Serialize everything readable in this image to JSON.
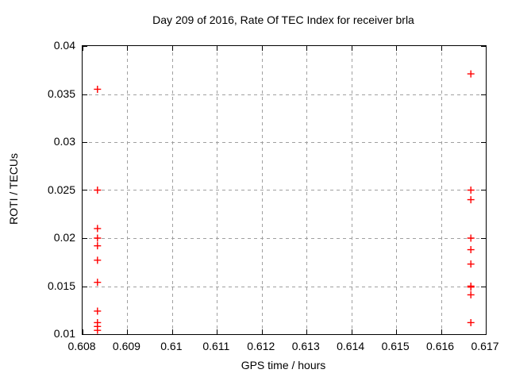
{
  "chart_data": {
    "type": "scatter",
    "title": "Day 209 of 2016, Rate Of TEC Index for receiver brla",
    "xlabel": "GPS time / hours",
    "ylabel": "ROTI / TECUs",
    "xlim": [
      0.608,
      0.617
    ],
    "ylim": [
      0.01,
      0.04
    ],
    "grid": true,
    "legend": "none",
    "axis_color": "#000000",
    "grid_color": "#a0a0a0",
    "text_color": "#000000",
    "background_color": "#ffffff",
    "x_ticks": [
      {
        "v": 0.608,
        "label": "0.608"
      },
      {
        "v": 0.609,
        "label": "0.609"
      },
      {
        "v": 0.61,
        "label": "0.61"
      },
      {
        "v": 0.611,
        "label": "0.611"
      },
      {
        "v": 0.612,
        "label": "0.612"
      },
      {
        "v": 0.613,
        "label": "0.613"
      },
      {
        "v": 0.614,
        "label": "0.614"
      },
      {
        "v": 0.615,
        "label": "0.615"
      },
      {
        "v": 0.616,
        "label": "0.616"
      },
      {
        "v": 0.617,
        "label": "0.617"
      }
    ],
    "y_ticks": [
      {
        "v": 0.01,
        "label": "0.01"
      },
      {
        "v": 0.015,
        "label": "0.015"
      },
      {
        "v": 0.02,
        "label": "0.02"
      },
      {
        "v": 0.025,
        "label": "0.025"
      },
      {
        "v": 0.03,
        "label": "0.03"
      },
      {
        "v": 0.035,
        "label": "0.035"
      },
      {
        "v": 0.04,
        "label": "0.04"
      }
    ],
    "series": [
      {
        "name": "ROTI",
        "color": "#ff0000",
        "marker": "plus",
        "points": [
          [
            0.608333,
            0.0355
          ],
          [
            0.608333,
            0.025
          ],
          [
            0.608333,
            0.021
          ],
          [
            0.608333,
            0.02
          ],
          [
            0.608333,
            0.0192
          ],
          [
            0.608333,
            0.0177
          ],
          [
            0.608333,
            0.0154
          ],
          [
            0.608333,
            0.0124
          ],
          [
            0.608333,
            0.0112
          ],
          [
            0.608333,
            0.0108
          ],
          [
            0.608333,
            0.0104
          ],
          [
            0.616667,
            0.0371
          ],
          [
            0.616667,
            0.025
          ],
          [
            0.616667,
            0.024
          ],
          [
            0.616667,
            0.02
          ],
          [
            0.616667,
            0.0188
          ],
          [
            0.616667,
            0.0173
          ],
          [
            0.616667,
            0.015
          ],
          [
            0.616667,
            0.0149
          ],
          [
            0.616667,
            0.0141
          ],
          [
            0.616667,
            0.0112
          ]
        ]
      }
    ]
  }
}
